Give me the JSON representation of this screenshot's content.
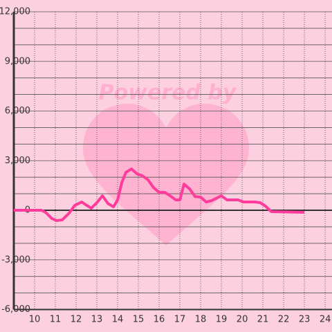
{
  "chart_data": {
    "type": "line",
    "watermark": "Powered by",
    "x": [
      9,
      10.33,
      10.53,
      10.83,
      11.07,
      11.33,
      11.67,
      11.93,
      12.27,
      12.47,
      12.73,
      13,
      13.27,
      13.53,
      13.8,
      14,
      14.2,
      14.4,
      14.67,
      14.93,
      15.2,
      15.47,
      15.73,
      16,
      16.27,
      16.53,
      16.8,
      17,
      17.2,
      17.47,
      17.73,
      18,
      18.27,
      18.53,
      18.8,
      19,
      19.27,
      19.53,
      19.8,
      20.07,
      20.6,
      20.87,
      21.13,
      21.4,
      23
    ],
    "series": [
      {
        "color": "#ff3c9b",
        "values": [
          0,
          0,
          -125,
          -500,
          -625,
          -583,
          -167,
          292,
          500,
          333,
          125,
          458,
          875,
          417,
          208,
          625,
          1667,
          2292,
          2500,
          2208,
          2083,
          1833,
          1375,
          1083,
          1083,
          875,
          625,
          625,
          1583,
          1292,
          833,
          792,
          500,
          583,
          750,
          875,
          625,
          625,
          625,
          500,
          500,
          458,
          250,
          -83,
          -125
        ]
      }
    ],
    "xlim": [
      9,
      24.33
    ],
    "xticks": [
      10,
      11,
      12,
      13,
      14,
      15,
      16,
      17,
      18,
      19,
      20,
      21,
      22,
      23,
      24
    ],
    "ylim": [
      -6000,
      12000
    ],
    "yticks": [
      {
        "value": -6000,
        "label": "-6,000"
      },
      {
        "value": -3000,
        "label": "-3,000"
      },
      0,
      {
        "value": 3000,
        "label": "3,000"
      },
      {
        "value": 6000,
        "label": "6,000"
      },
      {
        "value": 9000,
        "label": "9,000"
      },
      {
        "value": 12000,
        "label": "12,000"
      }
    ],
    "grid": true
  }
}
